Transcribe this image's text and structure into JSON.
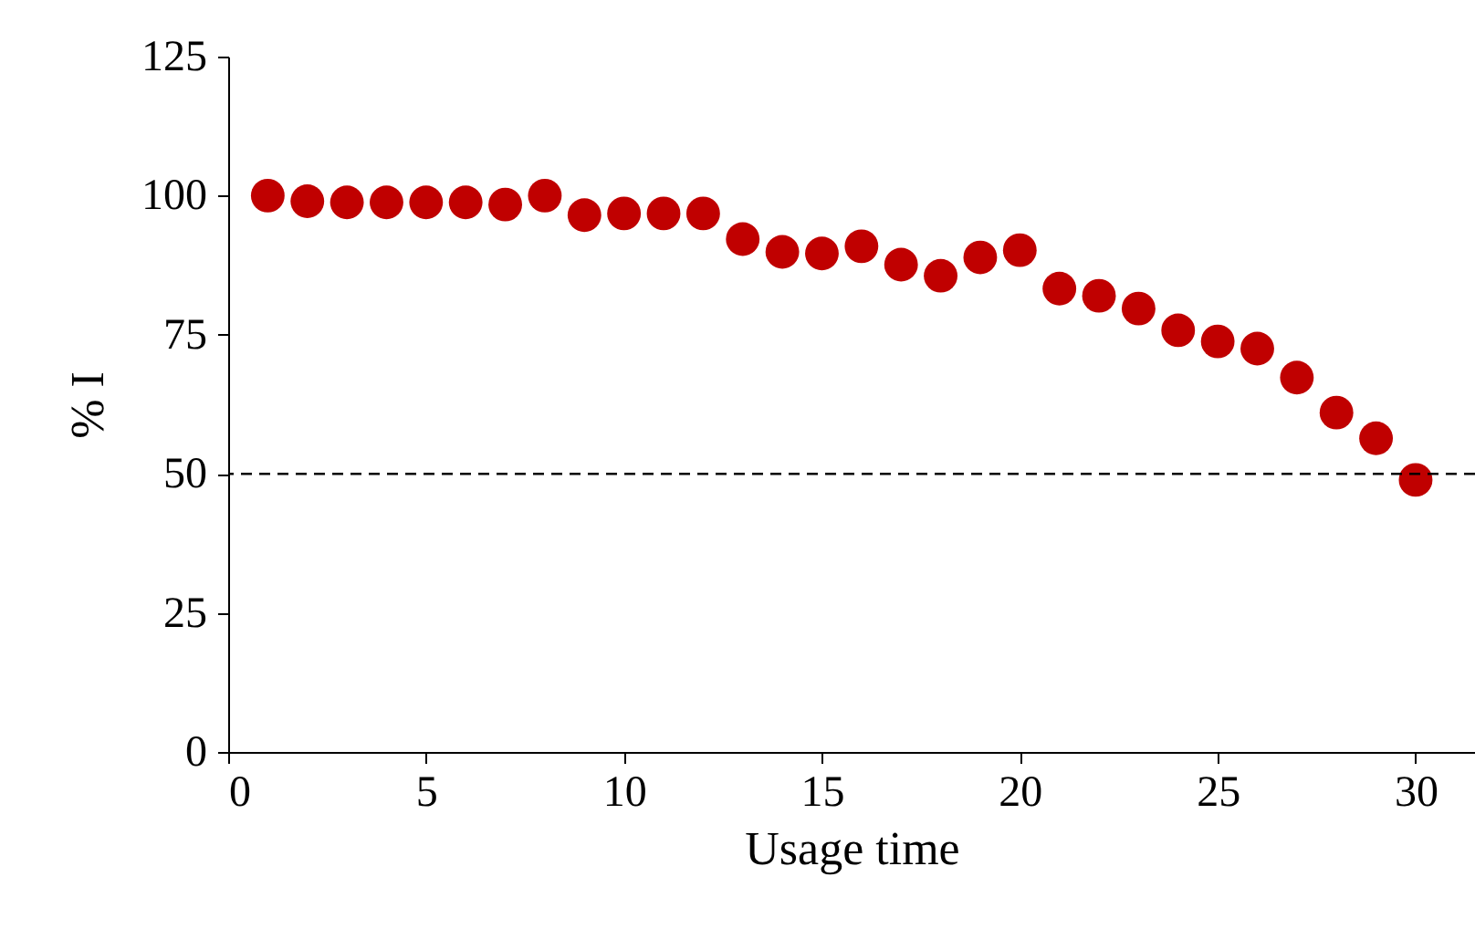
{
  "chart_data": {
    "type": "scatter",
    "xlabel": "Usage time",
    "ylabel": "% I",
    "x": [
      1,
      2,
      3,
      4,
      5,
      6,
      7,
      8,
      9,
      10,
      11,
      12,
      13,
      14,
      15,
      16,
      17,
      18,
      19,
      20,
      21,
      22,
      23,
      24,
      25,
      26,
      27,
      28,
      29,
      30
    ],
    "series": [
      {
        "color": "#c00000",
        "values": [
          100,
          99,
          98.8,
          98.8,
          98.8,
          98.8,
          98.4,
          100,
          96.5,
          96.8,
          96.8,
          96.8,
          92.2,
          89.9,
          89.6,
          90.9,
          87.6,
          85.6,
          88.9,
          90.2,
          83.3,
          82,
          79.7,
          75.8,
          73.8,
          72.5,
          67.3,
          61,
          56.4,
          48.9
        ]
      }
    ],
    "xlim": [
      0,
      31.5
    ],
    "xticks": [
      0,
      5,
      10,
      15,
      20,
      25,
      30
    ],
    "ylim": [
      0,
      125
    ],
    "yticks": [
      0,
      25,
      50,
      75,
      100,
      125
    ],
    "ref_lines": [
      {
        "axis": "y",
        "value": 50,
        "color": "#000000",
        "line_style": "dashed"
      }
    ],
    "marker": "circle",
    "grid": false
  }
}
